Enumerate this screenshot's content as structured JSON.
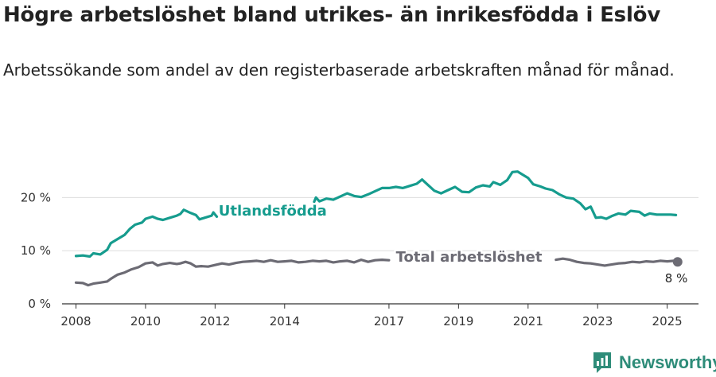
{
  "title": "Högre arbetslöshet bland utrikes- än inrikesfödda i Eslöv",
  "subtitle": "Arbetssökande som andel av den registerbaserade arbetskraften månad för månad.",
  "brand": {
    "name": "Newsworthy",
    "icon": "newsworthy-logo-icon"
  },
  "colors": {
    "foreign": "#169c8e",
    "total": "#6c6b74",
    "grid": "#dddddd",
    "axis": "#333333"
  },
  "chart_data": {
    "type": "line",
    "xlabel": "",
    "ylabel": "",
    "xlim": [
      2007.6,
      2025.9
    ],
    "ylim": [
      0,
      25
    ],
    "yticks": [
      {
        "value": 0,
        "label": "0 %"
      },
      {
        "value": 10,
        "label": "10 %"
      },
      {
        "value": 20,
        "label": "20 %"
      }
    ],
    "xticks": [
      {
        "value": 2008,
        "label": "2008"
      },
      {
        "value": 2010,
        "label": "2010"
      },
      {
        "value": 2012,
        "label": "2012"
      },
      {
        "value": 2014,
        "label": "2014"
      },
      {
        "value": 2017,
        "label": "2017"
      },
      {
        "value": 2019,
        "label": "2019"
      },
      {
        "value": 2021,
        "label": "2021"
      },
      {
        "value": 2023,
        "label": "2023"
      },
      {
        "value": 2025,
        "label": "2025"
      }
    ],
    "grid": true,
    "series": [
      {
        "name": "Utlandsfödda",
        "color": "#169c8e",
        "label_at": [
          2012.1,
          17.5
        ],
        "segments": [
          [
            [
              2008.0,
              9.0
            ],
            [
              2008.2,
              9.1
            ],
            [
              2008.4,
              8.9
            ],
            [
              2008.5,
              9.5
            ],
            [
              2008.7,
              9.3
            ],
            [
              2008.9,
              10.2
            ],
            [
              2009.0,
              11.4
            ],
            [
              2009.2,
              12.2
            ],
            [
              2009.4,
              13.0
            ],
            [
              2009.55,
              14.1
            ],
            [
              2009.7,
              14.9
            ],
            [
              2009.9,
              15.3
            ],
            [
              2010.0,
              16.0
            ],
            [
              2010.2,
              16.4
            ],
            [
              2010.35,
              16.0
            ],
            [
              2010.5,
              15.8
            ],
            [
              2010.7,
              16.2
            ],
            [
              2010.9,
              16.6
            ],
            [
              2011.0,
              16.9
            ],
            [
              2011.1,
              17.7
            ],
            [
              2011.3,
              17.1
            ],
            [
              2011.45,
              16.7
            ],
            [
              2011.55,
              15.9
            ],
            [
              2011.7,
              16.2
            ],
            [
              2011.9,
              16.6
            ],
            [
              2011.95,
              17.2
            ],
            [
              2012.05,
              16.4
            ]
          ],
          [
            [
              2014.85,
              19.2
            ],
            [
              2014.9,
              20.0
            ],
            [
              2015.0,
              19.3
            ],
            [
              2015.2,
              19.8
            ],
            [
              2015.4,
              19.6
            ],
            [
              2015.6,
              20.2
            ],
            [
              2015.8,
              20.8
            ],
            [
              2016.0,
              20.3
            ],
            [
              2016.2,
              20.1
            ],
            [
              2016.4,
              20.6
            ],
            [
              2016.6,
              21.2
            ],
            [
              2016.8,
              21.8
            ],
            [
              2017.0,
              21.8
            ],
            [
              2017.2,
              22.0
            ],
            [
              2017.4,
              21.8
            ],
            [
              2017.6,
              22.2
            ],
            [
              2017.8,
              22.6
            ],
            [
              2017.95,
              23.4
            ],
            [
              2018.1,
              22.5
            ],
            [
              2018.3,
              21.3
            ],
            [
              2018.5,
              20.8
            ],
            [
              2018.7,
              21.4
            ],
            [
              2018.9,
              22.0
            ],
            [
              2019.1,
              21.1
            ],
            [
              2019.3,
              21.0
            ],
            [
              2019.5,
              21.9
            ],
            [
              2019.7,
              22.3
            ],
            [
              2019.9,
              22.1
            ],
            [
              2020.0,
              22.9
            ],
            [
              2020.2,
              22.4
            ],
            [
              2020.4,
              23.3
            ],
            [
              2020.55,
              24.8
            ],
            [
              2020.7,
              24.9
            ],
            [
              2020.85,
              24.3
            ],
            [
              2021.0,
              23.7
            ],
            [
              2021.15,
              22.5
            ],
            [
              2021.35,
              22.1
            ],
            [
              2021.5,
              21.7
            ],
            [
              2021.7,
              21.4
            ],
            [
              2021.9,
              20.6
            ],
            [
              2022.1,
              20.0
            ],
            [
              2022.3,
              19.8
            ],
            [
              2022.5,
              18.9
            ],
            [
              2022.65,
              17.8
            ],
            [
              2022.8,
              18.3
            ],
            [
              2022.95,
              16.2
            ],
            [
              2023.1,
              16.3
            ],
            [
              2023.25,
              16.0
            ],
            [
              2023.4,
              16.5
            ],
            [
              2023.6,
              17.0
            ],
            [
              2023.8,
              16.8
            ],
            [
              2023.95,
              17.5
            ],
            [
              2024.2,
              17.3
            ],
            [
              2024.35,
              16.6
            ],
            [
              2024.5,
              17.0
            ],
            [
              2024.7,
              16.8
            ],
            [
              2024.9,
              16.8
            ],
            [
              2025.1,
              16.8
            ],
            [
              2025.25,
              16.7
            ]
          ]
        ]
      },
      {
        "name": "Total arbetslöshet",
        "color": "#6c6b74",
        "label_at": [
          2017.2,
          8.8
        ],
        "end_label": "8 %",
        "segments": [
          [
            [
              2008.0,
              4.0
            ],
            [
              2008.2,
              3.9
            ],
            [
              2008.35,
              3.5
            ],
            [
              2008.5,
              3.8
            ],
            [
              2008.7,
              4.0
            ],
            [
              2008.9,
              4.2
            ],
            [
              2009.0,
              4.7
            ],
            [
              2009.2,
              5.5
            ],
            [
              2009.4,
              5.9
            ],
            [
              2009.6,
              6.5
            ],
            [
              2009.8,
              6.9
            ],
            [
              2010.0,
              7.6
            ],
            [
              2010.2,
              7.8
            ],
            [
              2010.35,
              7.2
            ],
            [
              2010.5,
              7.5
            ],
            [
              2010.7,
              7.7
            ],
            [
              2010.9,
              7.5
            ],
            [
              2011.0,
              7.6
            ],
            [
              2011.15,
              7.9
            ],
            [
              2011.3,
              7.6
            ],
            [
              2011.45,
              7.0
            ],
            [
              2011.6,
              7.1
            ],
            [
              2011.8,
              7.0
            ],
            [
              2012.0,
              7.3
            ],
            [
              2012.2,
              7.6
            ],
            [
              2012.4,
              7.4
            ],
            [
              2012.6,
              7.7
            ],
            [
              2012.8,
              7.9
            ],
            [
              2013.0,
              8.0
            ],
            [
              2013.2,
              8.1
            ],
            [
              2013.4,
              7.9
            ],
            [
              2013.6,
              8.2
            ],
            [
              2013.8,
              7.9
            ],
            [
              2014.0,
              8.0
            ],
            [
              2014.2,
              8.1
            ],
            [
              2014.4,
              7.8
            ],
            [
              2014.6,
              7.9
            ],
            [
              2014.8,
              8.1
            ],
            [
              2015.0,
              8.0
            ],
            [
              2015.2,
              8.1
            ],
            [
              2015.4,
              7.8
            ],
            [
              2015.6,
              8.0
            ],
            [
              2015.8,
              8.1
            ],
            [
              2016.0,
              7.8
            ],
            [
              2016.2,
              8.3
            ],
            [
              2016.4,
              7.9
            ],
            [
              2016.6,
              8.2
            ],
            [
              2016.8,
              8.3
            ],
            [
              2017.0,
              8.2
            ]
          ],
          [
            [
              2021.8,
              8.3
            ],
            [
              2022.0,
              8.5
            ],
            [
              2022.2,
              8.3
            ],
            [
              2022.4,
              7.9
            ],
            [
              2022.6,
              7.7
            ],
            [
              2022.8,
              7.6
            ],
            [
              2023.0,
              7.4
            ],
            [
              2023.2,
              7.2
            ],
            [
              2023.4,
              7.4
            ],
            [
              2023.6,
              7.6
            ],
            [
              2023.8,
              7.7
            ],
            [
              2024.0,
              7.9
            ],
            [
              2024.2,
              7.8
            ],
            [
              2024.4,
              8.0
            ],
            [
              2024.6,
              7.9
            ],
            [
              2024.8,
              8.1
            ],
            [
              2025.0,
              8.0
            ],
            [
              2025.2,
              8.1
            ],
            [
              2025.3,
              7.9
            ]
          ]
        ]
      }
    ]
  }
}
